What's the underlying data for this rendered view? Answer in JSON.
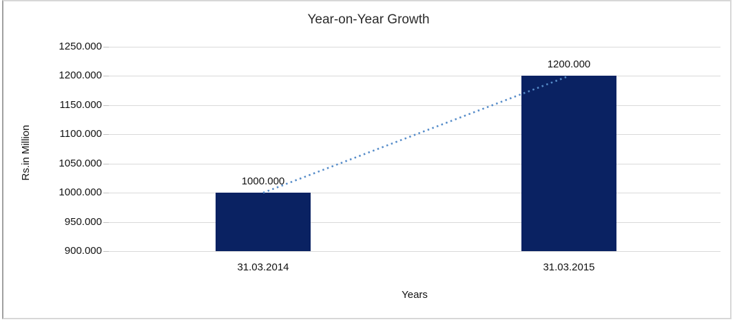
{
  "chart_data": {
    "type": "bar",
    "title": "Year-on-Year Growth",
    "xlabel": "Years",
    "ylabel": "Rs.in Million",
    "categories": [
      "31.03.2014",
      "31.03.2015"
    ],
    "values": [
      1000,
      1200
    ],
    "data_labels": [
      "1000.000",
      "1200.000"
    ],
    "ylim": [
      900,
      1250
    ],
    "ytick_step": 50,
    "ytick_labels": [
      "1250.000",
      "1200.000",
      "1150.000",
      "1100.000",
      "1050.000",
      "1000.000",
      "950.000",
      "900.000"
    ],
    "grid": true,
    "legend": "none",
    "bar_color": "#0a2262",
    "gridline_color": "#d9d9d9",
    "tickmark_color": "#bfbfbf",
    "trendline": {
      "type": "linear",
      "style": "dotted",
      "color": "#568cc9",
      "from_value": 1000,
      "to_value": 1200
    }
  }
}
